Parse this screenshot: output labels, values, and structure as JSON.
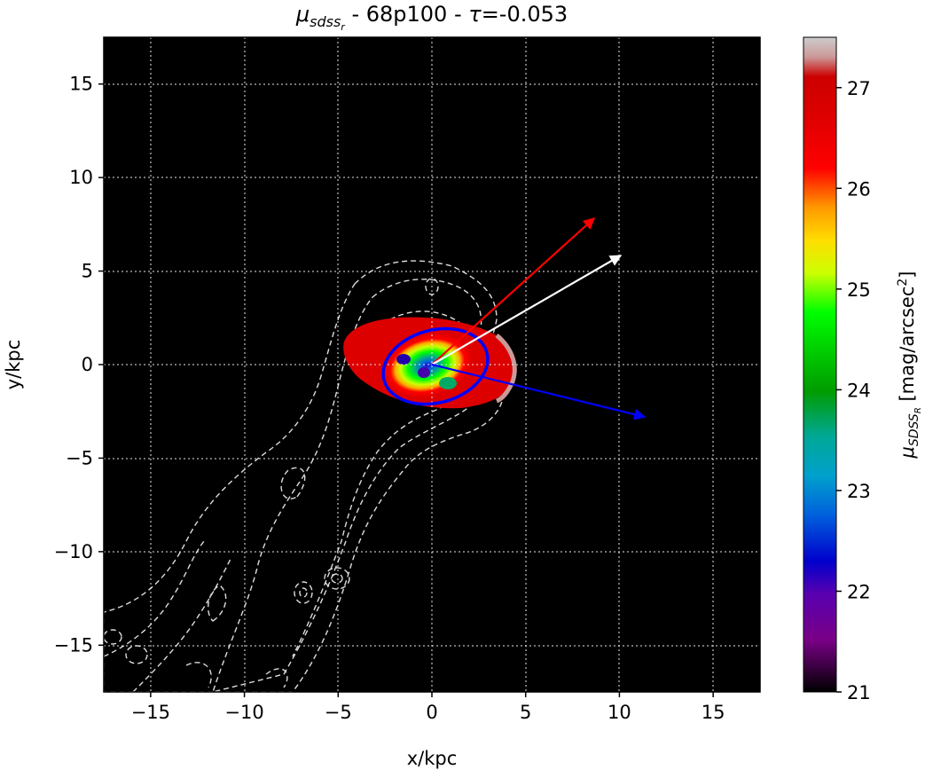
{
  "chart_data": {
    "type": "heatmap",
    "title": {
      "mu": "μ",
      "sub": "sdss",
      "subsub": "r",
      "rest": " - 68p100 - ",
      "tau": "τ",
      "tau_value": "=-0.053"
    },
    "xlabel": "x/kpc",
    "ylabel": "y/kpc",
    "xlim": [
      -17.5,
      17.5
    ],
    "ylim": [
      -17.5,
      17.5
    ],
    "xticks": [
      -15,
      -10,
      -5,
      0,
      5,
      10,
      15
    ],
    "yticks": [
      -15,
      -10,
      -5,
      0,
      5,
      10,
      15
    ],
    "xtick_labels": [
      "−15",
      "−10",
      "−5",
      "0",
      "5",
      "10",
      "15"
    ],
    "ytick_labels": [
      "−15",
      "−10",
      "−5",
      "0",
      "5",
      "10",
      "15"
    ],
    "grid": true,
    "background": "#000000",
    "colorbar": {
      "label_mu": "μ",
      "label_sub": "SDSS",
      "label_subsub": "R",
      "label_units": " [mag/arcsec",
      "label_power": "2",
      "label_close": "]",
      "range": [
        21,
        27.5
      ],
      "ticks": [
        21,
        22,
        23,
        24,
        25,
        26,
        27
      ],
      "tick_labels": [
        "21",
        "22",
        "23",
        "24",
        "25",
        "26",
        "27"
      ],
      "colormap": "nipy_spectral (reversed)"
    },
    "ellipse": {
      "center": [
        0.2,
        -0.1
      ],
      "semi_major": 2.7,
      "semi_minor": 1.9,
      "angle_deg": -15,
      "color": "#0000ff"
    },
    "arrows": [
      {
        "name": "red",
        "from": [
          0,
          0
        ],
        "to": [
          8.8,
          7.8
        ],
        "color": "#ff0000"
      },
      {
        "name": "white",
        "from": [
          0,
          0
        ],
        "to": [
          10.1,
          5.8
        ],
        "color": "#ffffff"
      },
      {
        "name": "blue",
        "from": [
          0,
          0
        ],
        "to": [
          11.4,
          -2.8
        ],
        "color": "#0000ff"
      }
    ],
    "galaxy_core": {
      "center": [
        0.1,
        0.0
      ],
      "mu_center": 21.8,
      "mu_edge": 27.3
    },
    "contours": {
      "color": "#dddddd",
      "style": "dashed"
    }
  }
}
